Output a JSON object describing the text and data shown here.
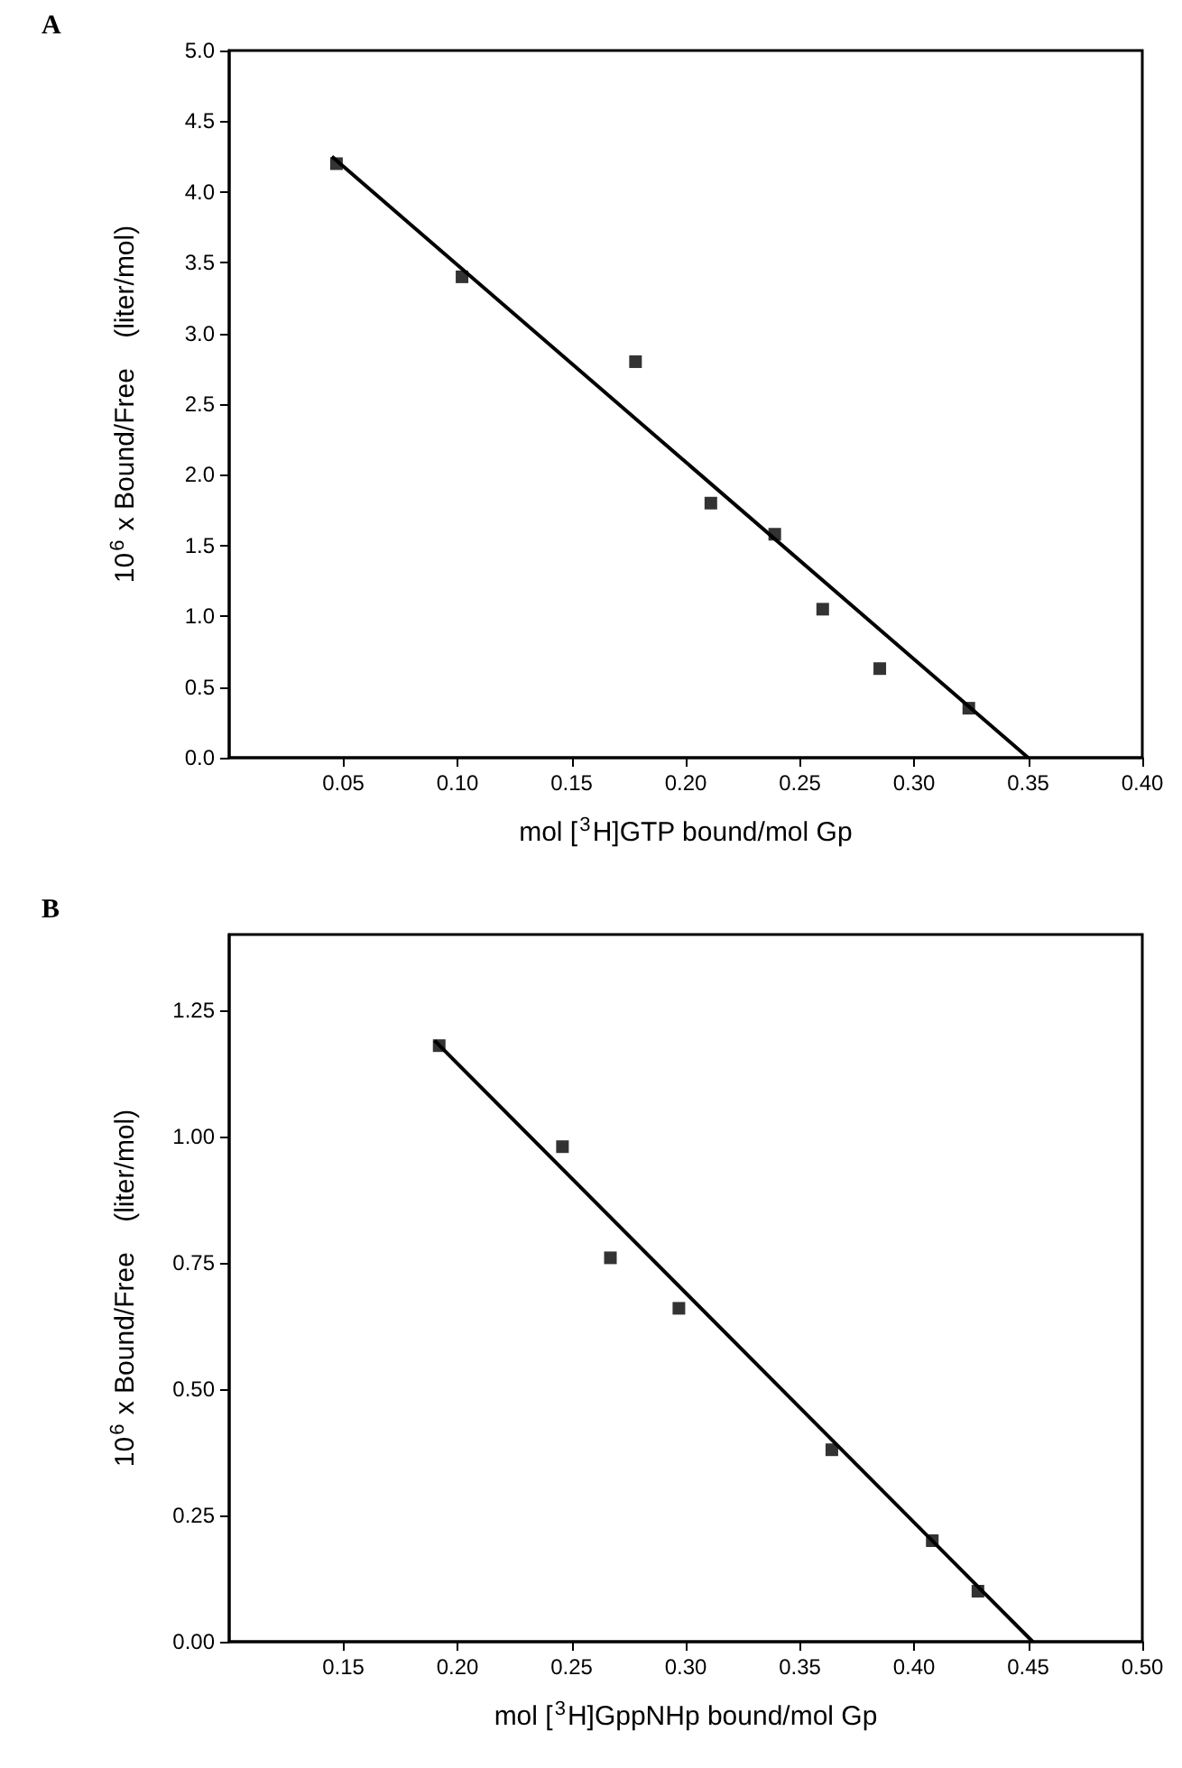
{
  "chart_data": [
    {
      "type": "scatter",
      "title": "A",
      "xlabel": "mol [$^{3}$H]GTP bound/mol Gp",
      "ylabel": "10$^{6}$ x Bound/Free    (liter/mol)",
      "series": [
        {
          "type": "scatter",
          "color": "#000000",
          "marker": "square",
          "x": [
            0.047,
            0.102,
            0.178,
            0.211,
            0.239,
            0.26,
            0.285,
            0.324
          ],
          "values": [
            4.2,
            3.4,
            2.8,
            1.8,
            1.58,
            1.05,
            0.63,
            0.35
          ]
        },
        {
          "type": "line",
          "color": "#000000",
          "marker": "none",
          "x": [
            0.045,
            0.35
          ],
          "values": [
            4.25,
            0
          ]
        }
      ],
      "xlim": [
        0,
        0.4
      ],
      "xticks": [
        {
          "value": 0.05,
          "label": "0.05"
        },
        {
          "value": 0.1,
          "label": "0.10"
        },
        {
          "value": 0.15,
          "label": "0.15"
        },
        {
          "value": 0.2,
          "label": "0.20"
        },
        {
          "value": 0.25,
          "label": "0.25"
        },
        {
          "value": 0.3,
          "label": "0.30"
        },
        {
          "value": 0.35,
          "label": "0.35"
        },
        {
          "value": 0.4,
          "label": "0.40"
        }
      ],
      "ylim": [
        0,
        5
      ],
      "yticks": [
        {
          "value": 0,
          "label": "0.0"
        },
        {
          "value": 0.5,
          "label": "0.5"
        },
        {
          "value": 1,
          "label": "1.0"
        },
        {
          "value": 1.5,
          "label": "1.5"
        },
        {
          "value": 2,
          "label": "2.0"
        },
        {
          "value": 2.5,
          "label": "2.5"
        },
        {
          "value": 3,
          "label": "3.0"
        },
        {
          "value": 3.5,
          "label": "3.5"
        },
        {
          "value": 4,
          "label": "4.0"
        },
        {
          "value": 4.5,
          "label": "4.5"
        },
        {
          "value": 5,
          "label": "5.0"
        }
      ]
    },
    {
      "type": "scatter",
      "title": "B",
      "xlabel": "mol [$^{3}$H]GppNHp bound/mol Gp",
      "ylabel": "10$^{6}$ x Bound/Free    (liter/mol)",
      "series": [
        {
          "type": "scatter",
          "color": "#000000",
          "marker": "square",
          "x": [
            0.192,
            0.246,
            0.267,
            0.297,
            0.364,
            0.408,
            0.428
          ],
          "values": [
            1.18,
            0.98,
            0.76,
            0.66,
            0.38,
            0.2,
            0.1
          ]
        },
        {
          "type": "line",
          "color": "#000000",
          "marker": "none",
          "x": [
            0.19,
            0.452
          ],
          "values": [
            1.19,
            0
          ]
        }
      ],
      "xlim": [
        0.1,
        0.5
      ],
      "xticks": [
        {
          "value": 0.15,
          "label": "0.15"
        },
        {
          "value": 0.2,
          "label": "0.20"
        },
        {
          "value": 0.25,
          "label": "0.25"
        },
        {
          "value": 0.3,
          "label": "0.30"
        },
        {
          "value": 0.35,
          "label": "0.35"
        },
        {
          "value": 0.4,
          "label": "0.40"
        },
        {
          "value": 0.45,
          "label": "0.45"
        },
        {
          "value": 0.5,
          "label": "0.50"
        }
      ],
      "ylim": [
        0,
        1.4
      ],
      "yticks": [
        {
          "value": 0,
          "label": "0.00"
        },
        {
          "value": 0.25,
          "label": "0.25"
        },
        {
          "value": 0.5,
          "label": "0.50"
        },
        {
          "value": 0.75,
          "label": "0.75"
        },
        {
          "value": 1,
          "label": "1.00"
        },
        {
          "value": 1.25,
          "label": "1.25"
        }
      ]
    }
  ]
}
